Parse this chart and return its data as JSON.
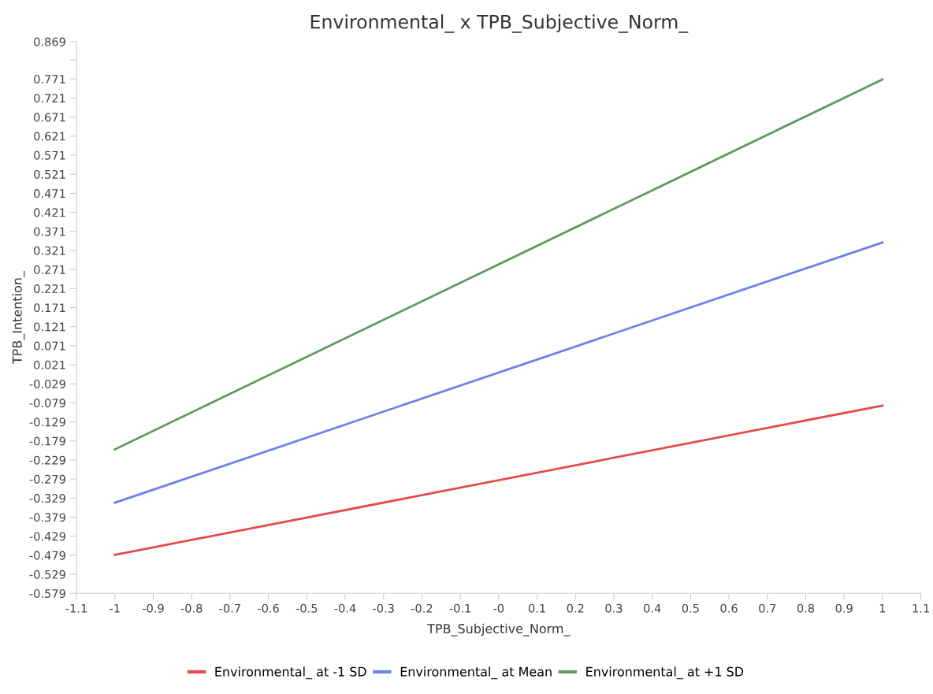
{
  "chart_data": {
    "type": "line",
    "title": "Environmental_ x TPB_Subjective_Norm_",
    "xlabel": "TPB_Subjective_Norm_",
    "ylabel": "TPB_Intention_",
    "x": [
      -1,
      1
    ],
    "series": [
      {
        "name": "Environmental_ at -1 SD",
        "color": "#e8474a",
        "values": [
          -0.478,
          -0.086
        ]
      },
      {
        "name": "Environmental_ at Mean",
        "color": "#6b82ea",
        "values": [
          -0.341,
          0.342
        ]
      },
      {
        "name": "Environmental_ at +1 SD",
        "color": "#5f9a5e",
        "values": [
          -0.201,
          0.77
        ]
      }
    ],
    "xlim": [
      -1.1,
      1.1
    ],
    "xticks": [
      -1.1,
      -1,
      -0.9,
      -0.8,
      -0.7,
      -0.6,
      -0.5,
      -0.4,
      -0.3,
      -0.2,
      -0.1,
      {
        "value": 0,
        "label": "-0"
      },
      0.1,
      0.2,
      0.3,
      0.4,
      0.5,
      0.6,
      0.7,
      0.8,
      0.9,
      1,
      1.1
    ],
    "ylim": [
      -0.579,
      0.869
    ],
    "yticks": [
      -0.579,
      -0.529,
      -0.479,
      -0.429,
      -0.379,
      -0.329,
      -0.279,
      -0.229,
      -0.179,
      -0.129,
      -0.079,
      -0.029,
      0.021,
      0.071,
      0.121,
      0.171,
      0.221,
      0.271,
      0.321,
      0.371,
      0.421,
      0.471,
      0.521,
      0.571,
      0.621,
      0.671,
      0.721,
      0.771,
      {
        "value": 0.821,
        "label": null
      },
      0.869
    ],
    "grid": false,
    "legend": "bottom",
    "marker": "none",
    "line_style": "solid"
  }
}
